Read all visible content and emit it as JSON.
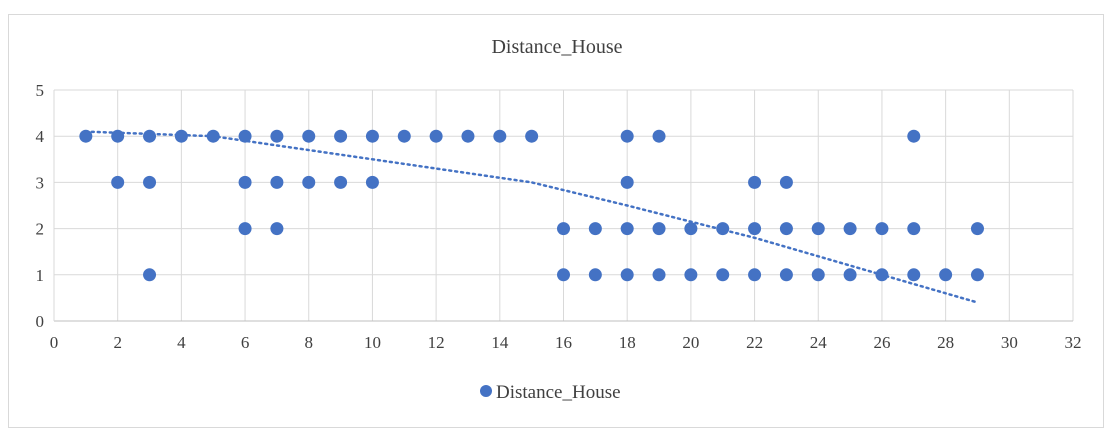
{
  "chart_data": {
    "type": "scatter",
    "title": "Distance_House",
    "xlabel": "",
    "ylabel": "",
    "xlim": [
      0,
      32
    ],
    "ylim": [
      0,
      5
    ],
    "x_ticks": [
      "0",
      "2",
      "4",
      "6",
      "8",
      "10",
      "12",
      "14",
      "16",
      "18",
      "20",
      "22",
      "24",
      "26",
      "28",
      "30",
      "32"
    ],
    "y_ticks": [
      "0",
      "1",
      "2",
      "3",
      "4",
      "5"
    ],
    "grid": true,
    "legend_position": "bottom",
    "series": [
      {
        "name": "Distance_House",
        "color": "#4472c4",
        "points": [
          [
            1,
            4
          ],
          [
            2,
            4
          ],
          [
            3,
            4
          ],
          [
            4,
            4
          ],
          [
            5,
            4
          ],
          [
            6,
            4
          ],
          [
            7,
            4
          ],
          [
            8,
            4
          ],
          [
            9,
            4
          ],
          [
            10,
            4
          ],
          [
            11,
            4
          ],
          [
            12,
            4
          ],
          [
            13,
            4
          ],
          [
            14,
            4
          ],
          [
            15,
            4
          ],
          [
            18,
            4
          ],
          [
            19,
            4
          ],
          [
            27,
            4
          ],
          [
            2,
            3
          ],
          [
            3,
            3
          ],
          [
            6,
            3
          ],
          [
            7,
            3
          ],
          [
            8,
            3
          ],
          [
            9,
            3
          ],
          [
            10,
            3
          ],
          [
            18,
            3
          ],
          [
            22,
            3
          ],
          [
            23,
            3
          ],
          [
            6,
            2
          ],
          [
            7,
            2
          ],
          [
            16,
            2
          ],
          [
            17,
            2
          ],
          [
            18,
            2
          ],
          [
            19,
            2
          ],
          [
            20,
            2
          ],
          [
            21,
            2
          ],
          [
            22,
            2
          ],
          [
            23,
            2
          ],
          [
            24,
            2
          ],
          [
            25,
            2
          ],
          [
            26,
            2
          ],
          [
            27,
            2
          ],
          [
            29,
            2
          ],
          [
            3,
            1
          ],
          [
            16,
            1
          ],
          [
            17,
            1
          ],
          [
            18,
            1
          ],
          [
            19,
            1
          ],
          [
            20,
            1
          ],
          [
            21,
            1
          ],
          [
            22,
            1
          ],
          [
            23,
            1
          ],
          [
            24,
            1
          ],
          [
            25,
            1
          ],
          [
            26,
            1
          ],
          [
            27,
            1
          ],
          [
            28,
            1
          ],
          [
            29,
            1
          ]
        ]
      }
    ],
    "trendline": {
      "type": "polynomial",
      "style": "dotted",
      "color": "#4472c4",
      "points": [
        [
          1,
          4.1
        ],
        [
          5,
          4.0
        ],
        [
          10,
          3.5
        ],
        [
          15,
          3.0
        ],
        [
          18,
          2.5
        ],
        [
          20,
          2.15
        ],
        [
          22,
          1.8
        ],
        [
          24,
          1.4
        ],
        [
          26,
          1.0
        ],
        [
          29,
          0.4
        ]
      ]
    }
  }
}
